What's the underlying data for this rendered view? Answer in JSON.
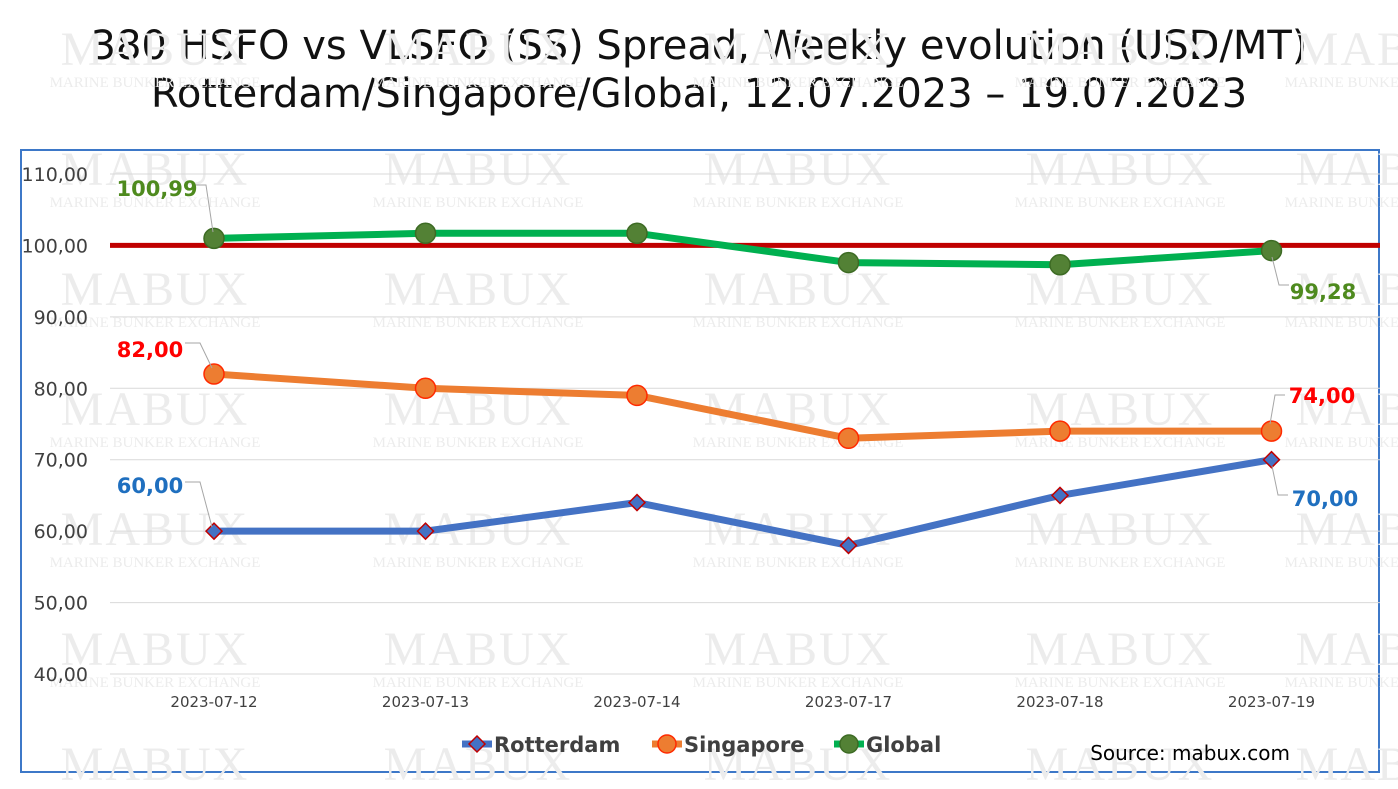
{
  "title_line1": "380 HSFO vs VLSFO (SS) Spread, Weekly evolution (USD/MT)",
  "title_line2": "Rotterdam/Singapore/Global, 12.07.2023 – 19.07.2023",
  "watermark": {
    "brand": "MABUX",
    "subtitle": "MARINE BUNKER EXCHANGE"
  },
  "source": "Source: mabux.com",
  "chart_data": {
    "type": "line",
    "categories": [
      "2023-07-12",
      "2023-07-13",
      "2023-07-14",
      "2023-07-17",
      "2023-07-18",
      "2023-07-19"
    ],
    "ylim": [
      40,
      110
    ],
    "yticks": [
      "40,00",
      "50,00",
      "60,00",
      "70,00",
      "80,00",
      "90,00",
      "100,00",
      "110,00"
    ],
    "ytick_values": [
      40,
      50,
      60,
      70,
      80,
      90,
      100,
      110
    ],
    "grid": true,
    "legend_position": "bottom",
    "reference_line": {
      "value": 100,
      "color": "#c00000"
    },
    "series": [
      {
        "name": "Rotterdam",
        "color": "#4472c4",
        "marker": "diamond",
        "label_color": "#1f6fbf",
        "values": [
          60,
          60,
          64,
          58,
          65,
          70
        ],
        "first_label": "60,00",
        "last_label": "70,00"
      },
      {
        "name": "Singapore",
        "color": "#ed7d31",
        "marker": "circle",
        "label_color": "#ff0000",
        "values": [
          82,
          80,
          79,
          73,
          74,
          74
        ],
        "first_label": "82,00",
        "last_label": "74,00"
      },
      {
        "name": "Global",
        "color": "#00b050",
        "marker": "circle-dark",
        "label_color": "#4e8a1e",
        "values": [
          100.99,
          101.7,
          101.7,
          97.6,
          97.3,
          99.28
        ],
        "first_label": "100,99",
        "last_label": "99,28"
      }
    ]
  }
}
